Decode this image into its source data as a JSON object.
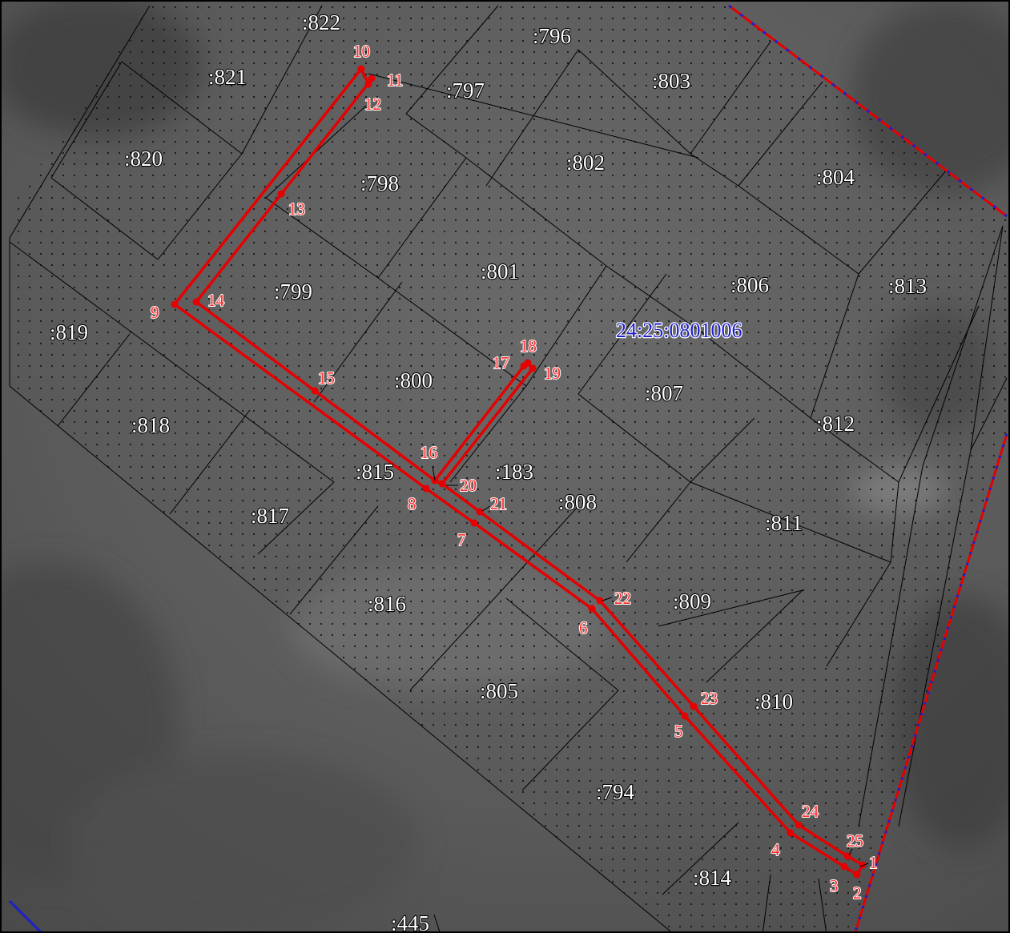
{
  "colors": {
    "route": "#e60000",
    "point_label": "#ff2a2a",
    "block_label": "#1e1ecc",
    "boundary_blue": "#1e1ecc",
    "parcel_lines": "#000000",
    "background": "#5a5a5a",
    "stipple_dots": "#151515"
  },
  "block_number": "24:25:0801006",
  "parcels": [
    {
      "id": "p822",
      "label": ":822"
    },
    {
      "id": "p796",
      "label": ":796"
    },
    {
      "id": "p821",
      "label": ":821"
    },
    {
      "id": "p797",
      "label": ":797"
    },
    {
      "id": "p803",
      "label": ":803"
    },
    {
      "id": "p820",
      "label": ":820"
    },
    {
      "id": "p802",
      "label": ":802"
    },
    {
      "id": "p798",
      "label": ":798"
    },
    {
      "id": "p804",
      "label": ":804"
    },
    {
      "id": "p801",
      "label": ":801"
    },
    {
      "id": "p806",
      "label": ":806"
    },
    {
      "id": "p813",
      "label": ":813"
    },
    {
      "id": "p799",
      "label": ":799"
    },
    {
      "id": "p819",
      "label": ":819"
    },
    {
      "id": "p800",
      "label": ":800"
    },
    {
      "id": "p807",
      "label": ":807"
    },
    {
      "id": "p818",
      "label": ":818"
    },
    {
      "id": "p812",
      "label": ":812"
    },
    {
      "id": "p815",
      "label": ":815"
    },
    {
      "id": "p183",
      "label": ":183"
    },
    {
      "id": "p808",
      "label": ":808"
    },
    {
      "id": "p817",
      "label": ":817"
    },
    {
      "id": "p811",
      "label": ":811"
    },
    {
      "id": "p816",
      "label": ":816"
    },
    {
      "id": "p809",
      "label": ":809"
    },
    {
      "id": "p805",
      "label": ":805"
    },
    {
      "id": "p810",
      "label": ":810"
    },
    {
      "id": "p794",
      "label": ":794"
    },
    {
      "id": "p814",
      "label": ":814"
    },
    {
      "id": "p445",
      "label": ":445"
    }
  ],
  "points": [
    {
      "label": "1"
    },
    {
      "label": "2"
    },
    {
      "label": "3"
    },
    {
      "label": "4"
    },
    {
      "label": "5"
    },
    {
      "label": "6"
    },
    {
      "label": "7"
    },
    {
      "label": "8"
    },
    {
      "label": "9"
    },
    {
      "label": "10"
    },
    {
      "label": "11"
    },
    {
      "label": "12"
    },
    {
      "label": "13"
    },
    {
      "label": "14"
    },
    {
      "label": "15"
    },
    {
      "label": "16"
    },
    {
      "label": "17"
    },
    {
      "label": "18"
    },
    {
      "label": "19"
    },
    {
      "label": "20"
    },
    {
      "label": "21"
    },
    {
      "label": "22"
    },
    {
      "label": "23"
    },
    {
      "label": "24"
    },
    {
      "label": "25"
    }
  ]
}
